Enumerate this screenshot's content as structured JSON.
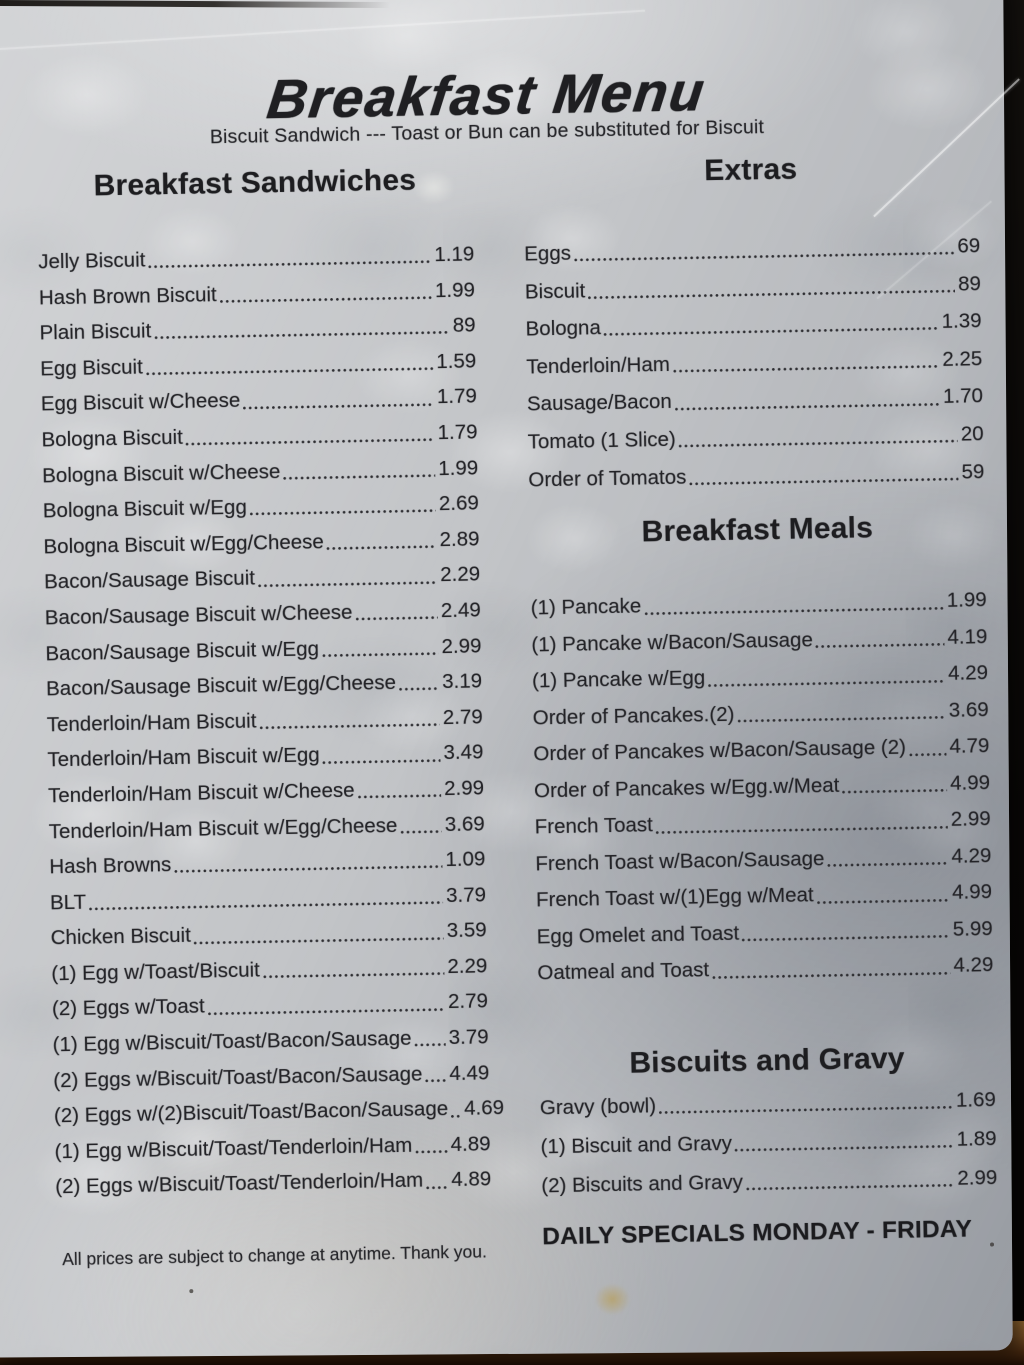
{
  "page": {
    "title": "Breakfast Menu",
    "subtitle": "Biscuit Sandwich --- Toast or Bun can be substituted for Biscuit",
    "note": "All prices are subject to change at anytime. Thank you.",
    "footer": "DAILY SPECIALS MONDAY - FRIDAY"
  },
  "sections": [
    {
      "id": "breakfast-sandwiches",
      "title": "Breakfast Sandwiches",
      "items": [
        {
          "name": "Jelly Biscuit",
          "price": "1.19"
        },
        {
          "name": "Hash Brown Biscuit",
          "price": "1.99"
        },
        {
          "name": "Plain Biscuit",
          "price": "89"
        },
        {
          "name": "Egg Biscuit",
          "price": "1.59"
        },
        {
          "name": "Egg Biscuit w/Cheese",
          "price": "1.79"
        },
        {
          "name": "Bologna Biscuit",
          "price": "1.79"
        },
        {
          "name": "Bologna Biscuit w/Cheese",
          "price": "1.99"
        },
        {
          "name": "Bologna Biscuit w/Egg",
          "price": "2.69"
        },
        {
          "name": "Bologna Biscuit w/Egg/Cheese",
          "price": "2.89"
        },
        {
          "name": "Bacon/Sausage Biscuit",
          "price": "2.29"
        },
        {
          "name": "Bacon/Sausage Biscuit w/Cheese",
          "price": "2.49"
        },
        {
          "name": "Bacon/Sausage Biscuit w/Egg",
          "price": "2.99"
        },
        {
          "name": "Bacon/Sausage Biscuit w/Egg/Cheese",
          "price": "3.19"
        },
        {
          "name": "Tenderloin/Ham Biscuit",
          "price": "2.79"
        },
        {
          "name": "Tenderloin/Ham Biscuit w/Egg",
          "price": "3.49"
        },
        {
          "name": "Tenderloin/Ham Biscuit w/Cheese",
          "price": "2.99"
        },
        {
          "name": "Tenderloin/Ham Biscuit w/Egg/Cheese",
          "price": "3.69"
        },
        {
          "name": "Hash Browns",
          "price": "1.09"
        },
        {
          "name": "BLT",
          "price": "3.79"
        },
        {
          "name": "Chicken Biscuit",
          "price": "3.59"
        },
        {
          "name": "(1) Egg w/Toast/Biscuit",
          "price": "2.29"
        },
        {
          "name": "(2) Eggs w/Toast",
          "price": "2.79"
        },
        {
          "name": "(1) Egg w/Biscuit/Toast/Bacon/Sausage",
          "price": "3.79"
        },
        {
          "name": "(2) Eggs w/Biscuit/Toast/Bacon/Sausage",
          "price": "4.49"
        },
        {
          "name": "(2) Eggs w/(2)Biscuit/Toast/Bacon/Sausage",
          "price": "4.69"
        },
        {
          "name": "(1) Egg w/Biscuit/Toast/Tenderloin/Ham",
          "price": "4.89"
        },
        {
          "name": "(2) Eggs w/Biscuit/Toast/Tenderloin/Ham",
          "price": "4.89"
        }
      ]
    },
    {
      "id": "extras",
      "title": "Extras",
      "items": [
        {
          "name": "Eggs",
          "price": "69"
        },
        {
          "name": "Biscuit",
          "price": "89"
        },
        {
          "name": "Bologna",
          "price": "1.39"
        },
        {
          "name": "Tenderloin/Ham",
          "price": "2.25"
        },
        {
          "name": "Sausage/Bacon",
          "price": "1.70"
        },
        {
          "name": "Tomato (1 Slice)",
          "price": "20"
        },
        {
          "name": "Order of Tomatos",
          "price": "59"
        }
      ]
    },
    {
      "id": "breakfast-meals",
      "title": "Breakfast Meals",
      "items": [
        {
          "name": "(1) Pancake",
          "price": "1.99"
        },
        {
          "name": "(1) Pancake w/Bacon/Sausage",
          "price": "4.19"
        },
        {
          "name": "(1) Pancake w/Egg",
          "price": "4.29"
        },
        {
          "name": "Order of Pancakes.(2)",
          "price": "3.69"
        },
        {
          "name": "Order of Pancakes w/Bacon/Sausage (2)",
          "price": "4.79"
        },
        {
          "name": "Order of Pancakes w/Egg.w/Meat",
          "price": "4.99"
        },
        {
          "name": "French Toast",
          "price": "2.99"
        },
        {
          "name": "French Toast w/Bacon/Sausage",
          "price": "4.29"
        },
        {
          "name": "French Toast w/(1)Egg w/Meat",
          "price": "4.99"
        },
        {
          "name": "Egg Omelet and Toast",
          "price": "5.99"
        },
        {
          "name": "Oatmeal and Toast",
          "price": "4.29"
        }
      ]
    },
    {
      "id": "biscuits-and-gravy",
      "title": "Biscuits and Gravy",
      "items": [
        {
          "name": "Gravy (bowl)",
          "price": "1.69"
        },
        {
          "name": "(1) Biscuit and Gravy",
          "price": "1.89"
        },
        {
          "name": "(2) Biscuits and Gravy",
          "price": "2.99"
        }
      ]
    }
  ],
  "colors": {
    "text": "#232327",
    "paper": "#c3c5c8",
    "wood_edge": "#7c5226",
    "background": "#0a0807",
    "stain": "#ba983e"
  }
}
